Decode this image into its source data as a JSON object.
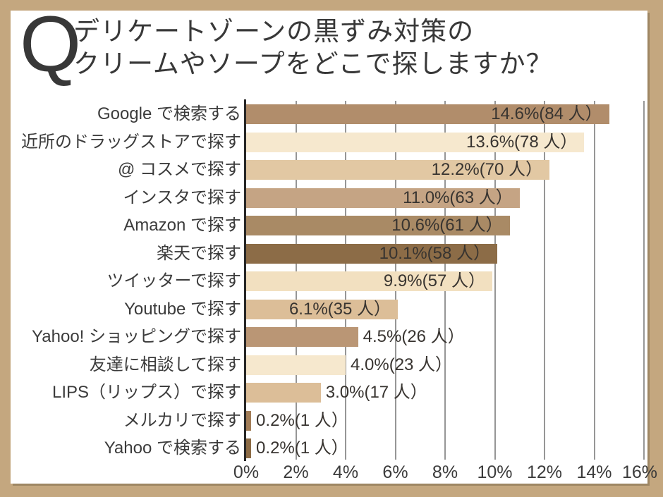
{
  "frame": {
    "border_color": "#c4a77f",
    "card_background": "#ffffff"
  },
  "title": {
    "q_mark": "Q",
    "line1": "デリケートゾーンの黒ずみ対策の",
    "line2": "クリームやソープをどこで探しますか？"
  },
  "chart_data": {
    "type": "bar",
    "orientation": "horizontal",
    "title": "デリケートゾーンの黒ずみ対策のクリームやソープをどこで探しますか？",
    "categories": [
      "Google で検索する",
      "近所のドラッグストアで探す",
      "@ コスメで探す",
      "インスタで探す",
      "Amazon で探す",
      "楽天で探す",
      "ツイッターで探す",
      "Youtube で探す",
      "Yahoo! ショッピングで探す",
      "友達に相談して探す",
      "LIPS（リップス）で探す",
      "メルカリで探す",
      "Yahoo で検索する"
    ],
    "values": [
      14.6,
      13.6,
      12.2,
      11.0,
      10.6,
      10.1,
      9.9,
      6.1,
      4.5,
      4.0,
      3.0,
      0.2,
      0.2
    ],
    "counts": [
      84,
      78,
      70,
      63,
      61,
      58,
      57,
      35,
      26,
      23,
      17,
      1,
      1
    ],
    "data_labels": [
      "14.6%(84 人）",
      "13.6%(78 人）",
      "12.2%(70 人）",
      "11.0%(63 人）",
      "10.6%(61 人）",
      "10.1%(58 人）",
      "9.9%(57 人）",
      "6.1%(35 人）",
      "4.5%(26 人）",
      "4.0%(23 人）",
      "3.0%(17 人）",
      "0.2%(1 人）",
      "0.2%(1 人）"
    ],
    "label_inside": [
      true,
      true,
      true,
      true,
      true,
      true,
      true,
      true,
      false,
      false,
      false,
      false,
      false
    ],
    "bar_colors": [
      "#b18d6b",
      "#f6e8ce",
      "#e2c8a3",
      "#c5a484",
      "#a98a65",
      "#8c6c47",
      "#f2e0c0",
      "#dcbe98",
      "#ba9675",
      "#f6e8ce",
      "#dcbe98",
      "#a27d57",
      "#8c6b45"
    ],
    "xlabel": "",
    "ylabel": "",
    "xlim": [
      0,
      16
    ],
    "x_ticks": [
      "0%",
      "2%",
      "4%",
      "6%",
      "8%",
      "10%",
      "12%",
      "14%",
      "16%"
    ],
    "x_tick_values": [
      0,
      2,
      4,
      6,
      8,
      10,
      12,
      14,
      16
    ],
    "gridlines": true,
    "legend": "none",
    "axis_color": "#262626",
    "gridline_color": "#969696",
    "text_color": "#3b3b3b"
  }
}
